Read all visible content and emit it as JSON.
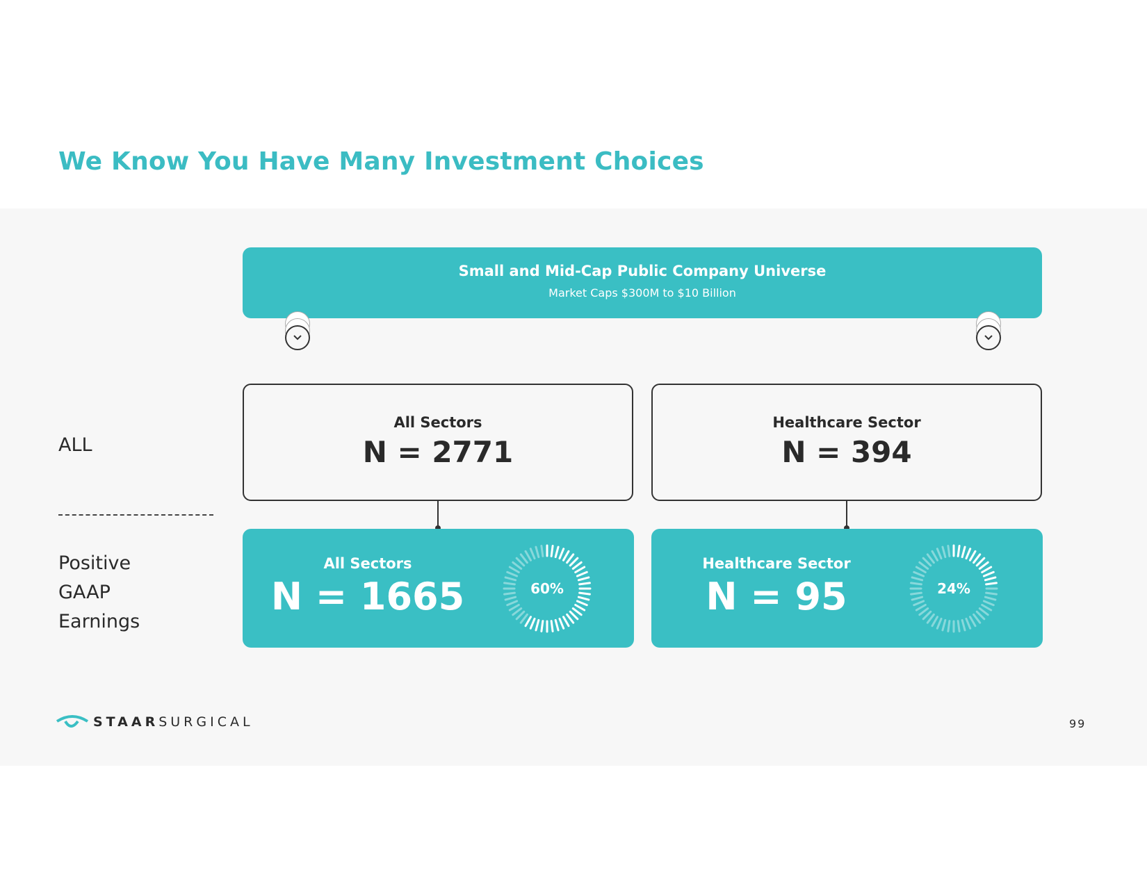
{
  "title": "We Know You Have Many Investment Choices",
  "universe": {
    "title": "Small and Mid-Cap Public Company Universe",
    "subtitle": "Market Caps $300M to $10 Billion"
  },
  "rows": {
    "all_label": "ALL",
    "positive_label": [
      "Positive",
      "GAAP",
      "Earnings"
    ]
  },
  "all": [
    {
      "label": "All Sectors",
      "n": "N = 2771"
    },
    {
      "label": "Healthcare Sector",
      "n": "N = 394"
    }
  ],
  "positive": [
    {
      "label": "All Sectors",
      "n": "N = 1665",
      "pct_text": "60%",
      "pct": 60
    },
    {
      "label": "Healthcare Sector",
      "n": "N = 95",
      "pct_text": "24%",
      "pct": 24
    }
  ],
  "colors": {
    "accent": "#3abfc4",
    "text": "#2a2a2a"
  },
  "footer": {
    "logo_bold": "STAAR",
    "logo_light": "SURGICAL",
    "page": "99"
  }
}
